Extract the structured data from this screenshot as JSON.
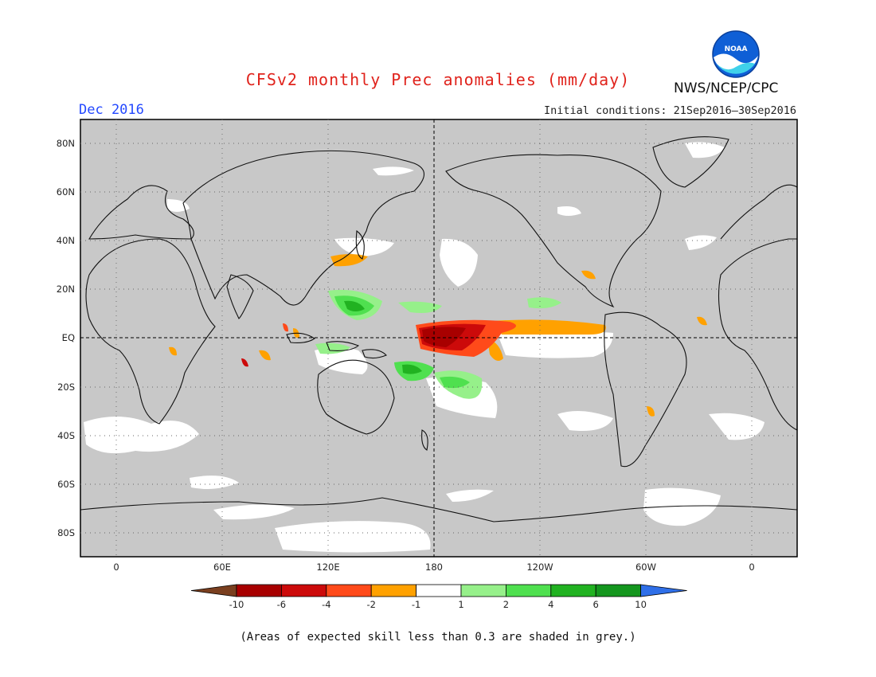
{
  "title": "CFSv2 monthly Prec anomalies (mm/day)",
  "organization": "NWS/NCEP/CPC",
  "logo_text": "NOAA",
  "forecast_month": "Dec 2016",
  "initial_conditions": "Initial conditions: 21Sep2016–30Sep2016",
  "footnote": "(Areas of expected skill less than 0.3 are shaded in grey.)",
  "map": {
    "projection": "equirectangular",
    "lon_range": [
      -20,
      380
    ],
    "lat_range": [
      -90,
      90
    ],
    "skill_mask_color": "#c8c8c8",
    "reference_lines": [
      "EQ",
      "180"
    ],
    "lat_labels": [
      "80N",
      "60N",
      "40N",
      "20N",
      "EQ",
      "20S",
      "40S",
      "60S",
      "80S"
    ],
    "lon_labels": [
      "0",
      "60E",
      "120E",
      "180",
      "120W",
      "60W",
      "0"
    ]
  },
  "colorbar": {
    "labels": [
      "-10",
      "-6",
      "-4",
      "-2",
      "-1",
      "1",
      "2",
      "4",
      "6",
      "10"
    ],
    "colors": [
      "#7a3f1f",
      "#a80000",
      "#cc0a0a",
      "#ff4a1a",
      "#ffa100",
      "#ffffff",
      "#96f08a",
      "#4fe04f",
      "#21b221",
      "#14961e",
      "#2f6fe8"
    ]
  }
}
